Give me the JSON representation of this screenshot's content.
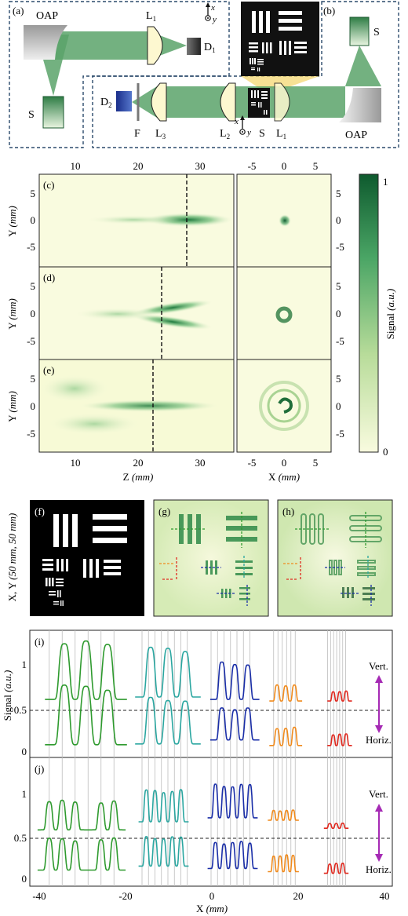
{
  "panels": {
    "a": "(a)",
    "b": "(b)",
    "c": "(c)",
    "d": "(d)",
    "e": "(e)",
    "f": "(f)",
    "g": "(g)",
    "h": "(h)",
    "i": "(i)",
    "j": "(j)"
  },
  "setup": {
    "oap_left": "OAP",
    "oap_right": "OAP",
    "L1_top": "L",
    "L1_top_sub": "1",
    "D1": "D",
    "D1_sub": "1",
    "S_left": "S",
    "S_right": "S",
    "D2": "D",
    "D2_sub": "2",
    "F": "F",
    "L3": "L",
    "L3_sub": "3",
    "L2": "L",
    "L2_sub": "2",
    "S_mid": "S",
    "L1_bot": "L",
    "L1_bot_sub": "1",
    "axis_x": "x",
    "axis_y": "y",
    "axis_x2": "x",
    "axis_y2": "y"
  },
  "maps": {
    "top_ticks_left": [
      "10",
      "20",
      "30"
    ],
    "top_ticks_right": [
      "-5",
      "0",
      "5"
    ],
    "y_ticks": [
      "5",
      "0",
      "-5"
    ],
    "ylabel": "Y ",
    "ylabel_unit": "(mm)",
    "xlabel_z": "Z ",
    "xlabel_z_unit": "(mm)",
    "xlabel_x": "X ",
    "xlabel_x_unit": "(mm)",
    "bottom_ticks_left": [
      "10",
      "20",
      "30"
    ],
    "bottom_ticks_right": [
      "-5",
      "0",
      "5"
    ]
  },
  "colorbar": {
    "max": "1",
    "min": "0",
    "label": "Signal ",
    "label_unit": "(a.u.)"
  },
  "images_row": {
    "ylabel": "X, Y ",
    "ylabel_unit": "(50 mm, 50 mm)"
  },
  "profiles": {
    "yticks_i": [
      "1",
      "0.5",
      "0"
    ],
    "yticks_j": [
      "1",
      "0.5",
      "0"
    ],
    "ylabel": "Signal ",
    "ylabel_unit": "(a.u.)",
    "vert": "Vert.",
    "horiz": "Horiz.",
    "vert_j": "Vert.",
    "horiz_j": "Horiz.",
    "xticks": [
      "-40",
      "-20",
      "0",
      "20",
      "40"
    ],
    "xlabel": "X ",
    "xlabel_unit": "(mm)"
  },
  "chart_data": [
    {
      "type": "heatmap",
      "panel": "c",
      "xaxis": "Z (mm)",
      "yaxis": "Y (mm)",
      "xlim": [
        5,
        36
      ],
      "ylim": [
        -7.5,
        7.5
      ],
      "focus_z": 28.5,
      "color_range": [
        0,
        1
      ]
    },
    {
      "type": "heatmap",
      "panel": "d",
      "xaxis": "Z (mm)",
      "yaxis": "Y (mm)",
      "xlim": [
        5,
        36
      ],
      "ylim": [
        -7.5,
        7.5
      ],
      "focus_z": 24.5,
      "color_range": [
        0,
        1
      ]
    },
    {
      "type": "heatmap",
      "panel": "e",
      "xaxis": "Z (mm)",
      "yaxis": "Y (mm)",
      "xlim": [
        5,
        36
      ],
      "ylim": [
        -7.5,
        7.5
      ],
      "focus_z": 23,
      "color_range": [
        0,
        1
      ]
    },
    {
      "type": "line",
      "panel": "i",
      "xaxis": "X (mm)",
      "xlim": [
        -42,
        42
      ],
      "ylim": [
        -0.1,
        1.5
      ],
      "gridlines_x": [
        -37.5,
        -34.5,
        -31.5,
        -28.5,
        -25.5,
        -22.5,
        -16,
        -14.5,
        -13,
        -11.5,
        -10,
        -8.5,
        -7,
        -5.5,
        0,
        1.5,
        3,
        4.5,
        6,
        7.5,
        9,
        14.5,
        15.5,
        16.5,
        17.5,
        18.5,
        19.5,
        27,
        27.7,
        28.4,
        29.1,
        29.8,
        30.5,
        31.2
      ],
      "series": [
        {
          "name": "Vert.",
          "groups": [
            {
              "color": "#2e9a2e",
              "peaks": [
                -34,
                -29,
                -24
              ],
              "base": 0.63,
              "amp": 0.7
            },
            {
              "color": "#2aa6a0",
              "peaks": [
                -14,
                -10,
                -6
              ],
              "base": 0.66,
              "amp": 0.6
            },
            {
              "color": "#1a2ea8",
              "peaks": [
                2.5,
                5.5,
                8.5
              ],
              "base": 0.63,
              "amp": 0.45
            },
            {
              "color": "#f08a1c",
              "peaks": [
                15.3,
                17.3,
                19.3
              ],
              "base": 0.61,
              "amp": 0.2
            },
            {
              "color": "#e0281e",
              "peaks": [
                28.3,
                29.8,
                31.3
              ],
              "base": 0.61,
              "amp": 0.12
            }
          ]
        },
        {
          "name": "Horiz.",
          "groups": [
            {
              "color": "#2e9a2e",
              "peaks": [
                -34,
                -29,
                -24
              ],
              "base": 0.06,
              "amp": 0.72
            },
            {
              "color": "#2aa6a0",
              "peaks": [
                -14,
                -10,
                -6
              ],
              "base": 0.07,
              "amp": 0.56
            },
            {
              "color": "#1a2ea8",
              "peaks": [
                2.5,
                5.5,
                8.5
              ],
              "base": 0.12,
              "amp": 0.4
            },
            {
              "color": "#f08a1c",
              "peaks": [
                15.3,
                17.3,
                19.3
              ],
              "base": 0.05,
              "amp": 0.22
            },
            {
              "color": "#e0281e",
              "peaks": [
                28.3,
                29.8,
                31.3
              ],
              "base": 0.05,
              "amp": 0.14
            }
          ]
        }
      ]
    },
    {
      "type": "line",
      "panel": "j",
      "xaxis": "X (mm)",
      "xlim": [
        -42,
        42
      ],
      "ylim": [
        -0.1,
        1.5
      ],
      "series": [
        {
          "name": "Vert.",
          "groups": [
            {
              "color": "#2e9a2e",
              "peaks": [
                -37.5,
                -34.5,
                -31.5,
                -25.5,
                -22.5
              ],
              "base": 0.6,
              "amp": 0.35
            },
            {
              "color": "#2aa6a0",
              "peaks": [
                -15,
                -13,
                -11,
                -9,
                -7
              ],
              "base": 0.7,
              "amp": 0.38
            },
            {
              "color": "#1a2ea8",
              "peaks": [
                1,
                3,
                5,
                7,
                9
              ],
              "base": 0.75,
              "amp": 0.4
            },
            {
              "color": "#f08a1c",
              "peaks": [
                14.5,
                16,
                17.5,
                19
              ],
              "base": 0.72,
              "amp": 0.12
            },
            {
              "color": "#e0281e",
              "peaks": [
                27.5,
                29,
                30.5
              ],
              "base": 0.62,
              "amp": 0.06
            }
          ]
        },
        {
          "name": "Horiz.",
          "groups": [
            {
              "color": "#2e9a2e",
              "peaks": [
                -37.5,
                -34.5,
                -31.5,
                -25.5,
                -22.5
              ],
              "base": 0.1,
              "amp": 0.38
            },
            {
              "color": "#2aa6a0",
              "peaks": [
                -15,
                -13,
                -11,
                -9,
                -7
              ],
              "base": 0.15,
              "amp": 0.35
            },
            {
              "color": "#1a2ea8",
              "peaks": [
                1,
                3,
                5,
                7,
                9
              ],
              "base": 0.12,
              "amp": 0.32
            },
            {
              "color": "#f08a1c",
              "peaks": [
                14.5,
                16,
                17.5,
                19
              ],
              "base": 0.08,
              "amp": 0.2
            },
            {
              "color": "#e0281e",
              "peaks": [
                27.5,
                29,
                30.5
              ],
              "base": 0.06,
              "amp": 0.12
            }
          ]
        }
      ]
    }
  ],
  "colors": {
    "beam": "#5aa36a",
    "map_bg": "#f9fbdf",
    "map_hi": "#0e5a2e",
    "dashed_box": "#2b4a6b",
    "arrow": "#a52ab4"
  }
}
